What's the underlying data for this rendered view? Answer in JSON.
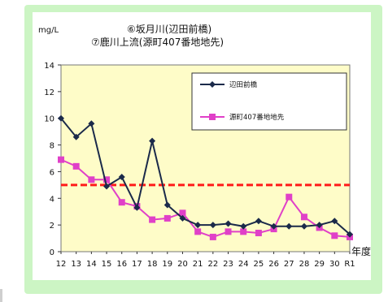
{
  "chart_data": {
    "type": "line",
    "title_lines": [
      "⑥坂月川(辺田前橋)",
      "⑦鹿川上流(源町407番地地先)"
    ],
    "ylabel": "mg/L",
    "xlabel": "年度",
    "ylim": [
      0,
      14
    ],
    "yticks": [
      0,
      2,
      4,
      6,
      8,
      10,
      12,
      14
    ],
    "grid": false,
    "legend_position": "top-right",
    "x": [
      "12",
      "13",
      "14",
      "15",
      "16",
      "17",
      "18",
      "19",
      "20",
      "21",
      "22",
      "23",
      "24",
      "25",
      "26",
      "27",
      "28",
      "29",
      "30",
      "R1"
    ],
    "series": [
      {
        "name": "辺田前橋",
        "color": "#1b2a4a",
        "marker": "diamond",
        "values": [
          10.0,
          8.6,
          9.6,
          4.9,
          5.6,
          3.3,
          8.3,
          3.5,
          2.5,
          2.0,
          2.0,
          2.1,
          1.9,
          2.3,
          1.9,
          1.9,
          1.9,
          2.0,
          2.3,
          1.3
        ]
      },
      {
        "name": "源町407番地地先",
        "color": "#e040c8",
        "marker": "square",
        "values": [
          6.9,
          6.4,
          5.4,
          5.4,
          3.7,
          3.4,
          2.4,
          2.5,
          2.9,
          1.5,
          1.1,
          1.5,
          1.5,
          1.4,
          1.7,
          4.1,
          2.6,
          1.8,
          1.2,
          1.1
        ]
      }
    ],
    "reference_line": {
      "value": 5,
      "color": "#ff1a1a",
      "style": "dashed"
    },
    "plot_background": "#fefcc8"
  }
}
